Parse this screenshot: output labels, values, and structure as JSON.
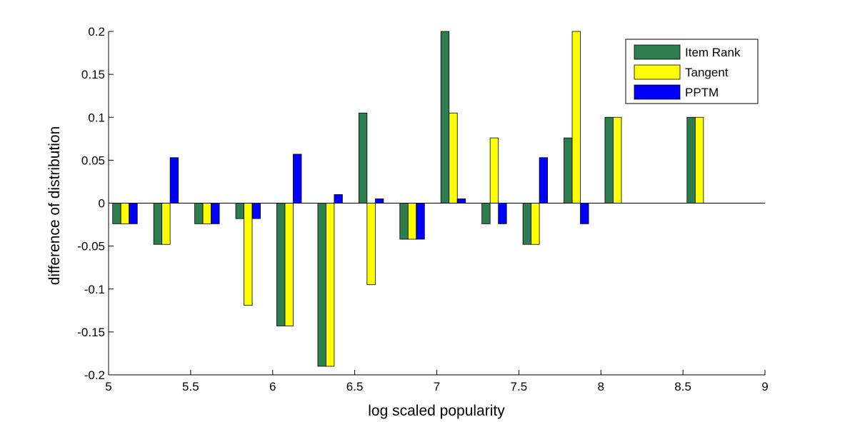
{
  "chart_data": {
    "type": "bar",
    "title": "",
    "xlabel": "log scaled popularity",
    "ylabel": "difference of distribution",
    "xlim": [
      5,
      9
    ],
    "ylim": [
      -0.2,
      0.2
    ],
    "xticks": [
      "5",
      "5.5",
      "6",
      "6.5",
      "7",
      "7.5",
      "8",
      "8.5",
      "9"
    ],
    "yticks": [
      "-0.2",
      "-0.15",
      "-0.1",
      "-0.05",
      "0",
      "0.05",
      "0.1",
      "0.15",
      "0.2"
    ],
    "grid": false,
    "legend_position": "top-right",
    "x": [
      5.1,
      5.35,
      5.6,
      5.85,
      6.1,
      6.35,
      6.6,
      6.85,
      7.1,
      7.35,
      7.6,
      7.85,
      8.1,
      8.6
    ],
    "series": [
      {
        "name": "Item Rank",
        "color": "#2e7d4f",
        "values": [
          -0.024,
          -0.048,
          -0.024,
          -0.018,
          -0.143,
          -0.19,
          0.105,
          -0.042,
          0.2,
          -0.024,
          -0.048,
          0.076,
          0.1,
          0.1
        ]
      },
      {
        "name": "Tangent",
        "color": "#ffff00",
        "values": [
          -0.024,
          -0.048,
          -0.024,
          -0.119,
          -0.143,
          -0.19,
          -0.095,
          -0.042,
          0.105,
          0.076,
          -0.048,
          0.2,
          0.1,
          0.1
        ]
      },
      {
        "name": "PPTM",
        "color": "#0000ff",
        "values": [
          -0.024,
          0.053,
          -0.024,
          -0.018,
          0.057,
          0.01,
          0.005,
          -0.042,
          0.005,
          -0.024,
          0.053,
          -0.024,
          0,
          0
        ]
      }
    ]
  }
}
